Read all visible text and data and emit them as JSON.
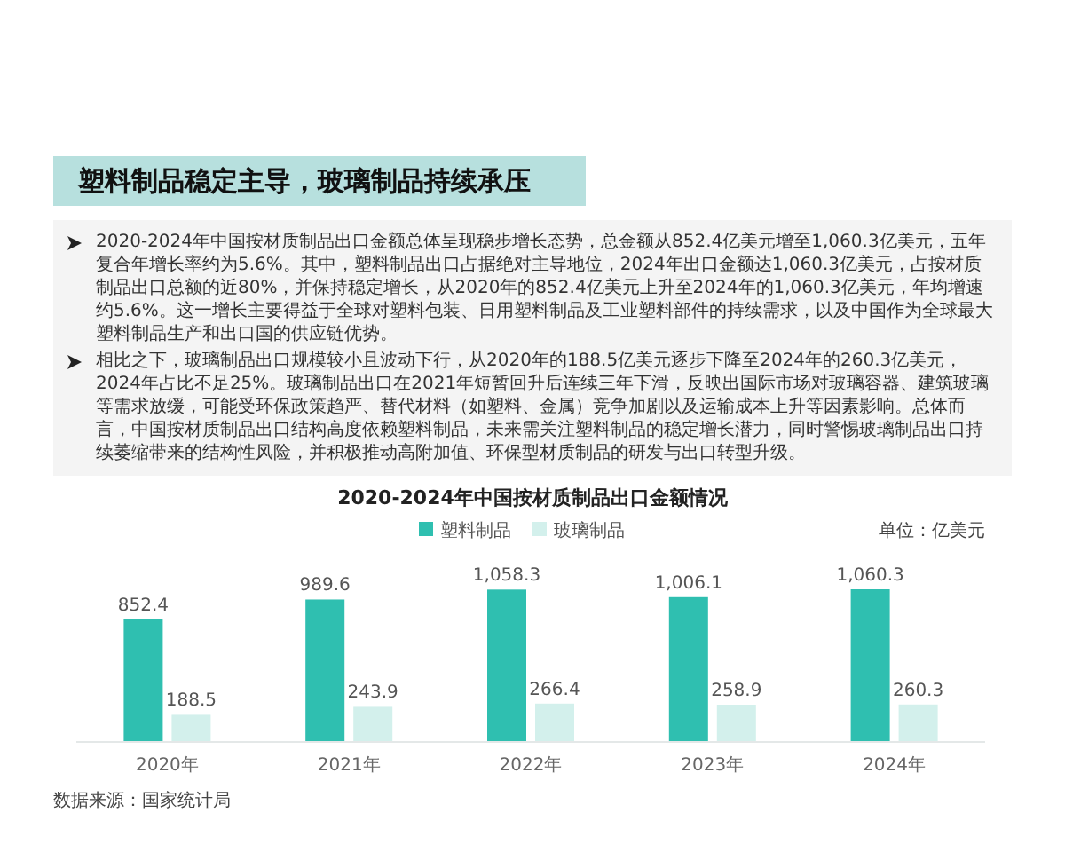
{
  "chart_data": {
    "type": "bar",
    "title": "2020-2024年中国按材质制品出口金额情况",
    "annotations": [
      "塑料制品稳定主导，玻璃制品持续承压",
      "2020-2024年中国按材质制品出口金额总体呈现稳步增长态势，总金额从852.4亿美元增至1,060.3亿美元，五年复合年增长率约为5.6%。其中，塑料制品出口占据绝对主导地位，2024年出口金额达1,060.3亿美元，占按材质制品出口总额的近80%，并保持稳定增长，从2020年的852.4亿美元上升至2024年的1,060.3亿美元，年均增速约5.6%。这一增长主要得益于全球对塑料包装、日用塑料制品及工业塑料部件的持续需求，以及中国作为全球最大塑料制品生产和出口国的供应链优势。",
      "相比之下，玻璃制品出口规模较小且波动下行，从2020年的188.5亿美元逐步下降至2024年的260.3亿美元，2024年占比不足25%。玻璃制品出口在2021年短暂回升后连续三年下滑，反映出国际市场对玻璃容器、建筑玻璃等需求放缓，可能受环保政策趋严、替代材料（如塑料、金属）竞争加剧以及运输成本上升等因素影响。总体而言，中国按材质制品出口结构高度依赖塑料制品，未来需关注塑料制品的稳定增长潜力，同时警惕玻璃制品出口持续萎缩带来的结构性风险，并积极推动高附加值、环保型材质制品的研发与出口转型升级。",
      "单位：亿美元",
      "数据来源：国家统计局"
    ],
    "categories": [
      "2020年",
      "2021年",
      "2022年",
      "2023年",
      "2024年"
    ],
    "series": [
      {
        "name": "塑料制品",
        "color": "#2fbfb0",
        "values": [
          852.4,
          989.6,
          1058.3,
          1006.1,
          1060.3
        ],
        "value_labels": [
          "852.4",
          "989.6",
          "1,058.3",
          "1,006.1",
          "1,060.3"
        ]
      },
      {
        "name": "玻璃制品",
        "color": "#d3f0ec",
        "values": [
          188.5,
          243.9,
          266.4,
          258.9,
          260.3
        ],
        "value_labels": [
          "188.5",
          "243.9",
          "266.4",
          "258.9",
          "260.3"
        ]
      }
    ],
    "legend": "top"
  }
}
